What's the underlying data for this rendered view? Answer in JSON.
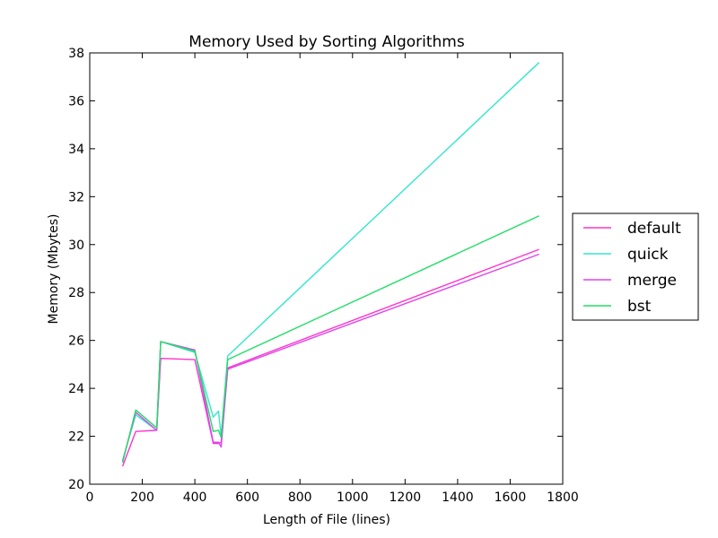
{
  "chart_data": {
    "type": "line",
    "title": "Memory Used by Sorting Algorithms",
    "xlabel": "Length of File (lines)",
    "ylabel": "Memory (Mbytes)",
    "xlim": [
      0,
      1800
    ],
    "ylim": [
      20,
      38
    ],
    "xticks": [
      0,
      200,
      400,
      600,
      800,
      1000,
      1200,
      1400,
      1600,
      1800
    ],
    "yticks": [
      20,
      22,
      24,
      26,
      28,
      30,
      32,
      34,
      36,
      38
    ],
    "grid": false,
    "legend_position": "outside-right",
    "series": [
      {
        "name": "default",
        "color": "#ff33cc",
        "points": [
          [
            125,
            20.75
          ],
          [
            175,
            22.2
          ],
          [
            255,
            22.25
          ],
          [
            270,
            25.25
          ],
          [
            400,
            25.2
          ],
          [
            470,
            21.7
          ],
          [
            490,
            21.7
          ],
          [
            500,
            21.75
          ],
          [
            525,
            24.85
          ],
          [
            1710,
            29.8
          ]
        ]
      },
      {
        "name": "quick",
        "color": "#33e6cc",
        "points": [
          [
            125,
            21.0
          ],
          [
            175,
            22.9
          ],
          [
            255,
            22.25
          ],
          [
            270,
            25.95
          ],
          [
            400,
            25.5
          ],
          [
            470,
            22.8
          ],
          [
            490,
            23.05
          ],
          [
            500,
            22.0
          ],
          [
            525,
            25.35
          ],
          [
            1710,
            37.6
          ]
        ]
      },
      {
        "name": "merge",
        "color": "#dd44ee",
        "points": [
          [
            125,
            20.95
          ],
          [
            175,
            23.0
          ],
          [
            255,
            22.25
          ],
          [
            270,
            25.95
          ],
          [
            400,
            25.6
          ],
          [
            470,
            21.75
          ],
          [
            490,
            21.75
          ],
          [
            500,
            21.55
          ],
          [
            525,
            24.8
          ],
          [
            1710,
            29.6
          ]
        ]
      },
      {
        "name": "bst",
        "color": "#22dd66",
        "points": [
          [
            125,
            20.9
          ],
          [
            175,
            23.1
          ],
          [
            255,
            22.35
          ],
          [
            270,
            25.95
          ],
          [
            400,
            25.55
          ],
          [
            470,
            22.2
          ],
          [
            490,
            22.25
          ],
          [
            500,
            21.95
          ],
          [
            525,
            25.2
          ],
          [
            1710,
            31.2
          ]
        ]
      }
    ]
  }
}
